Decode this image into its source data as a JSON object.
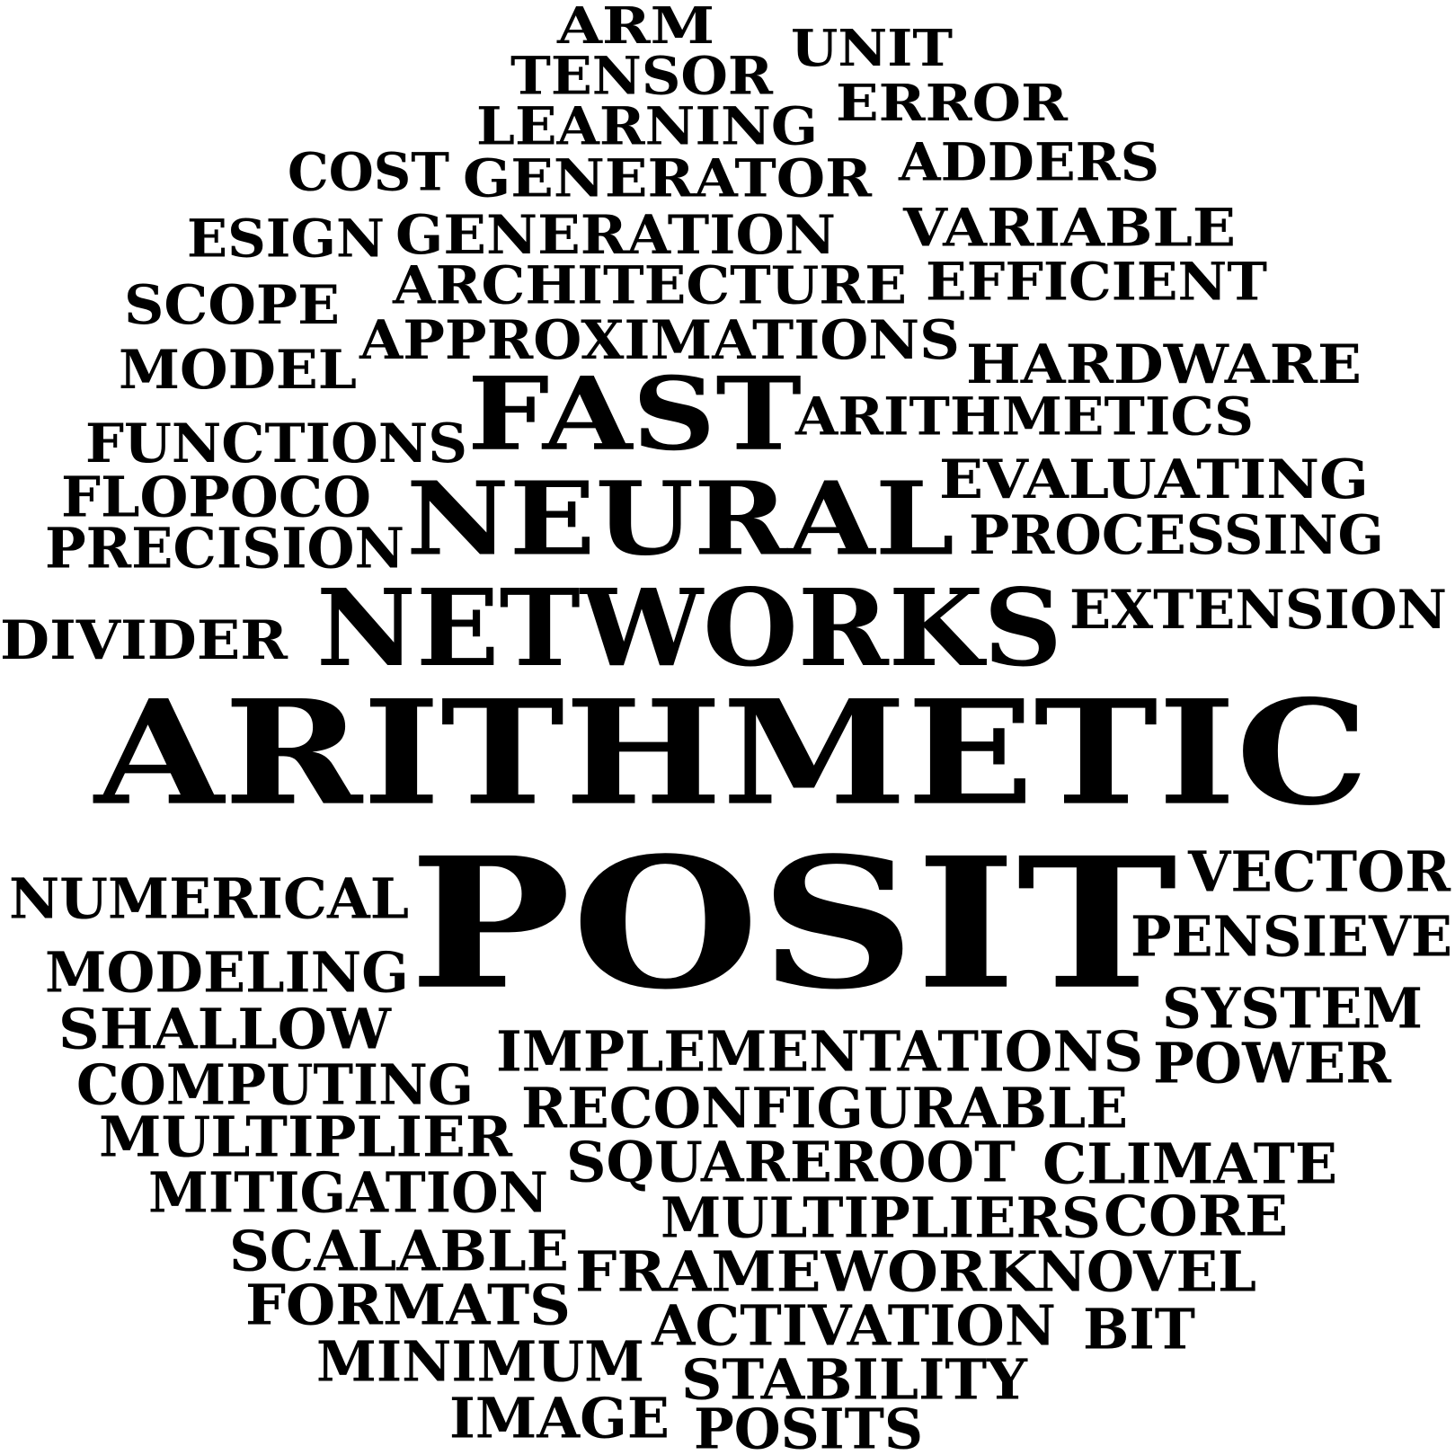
{
  "text_color": "#000000",
  "background_color": "#ffffff",
  "words": [
    "ARM",
    "UNIT",
    "TENSOR",
    "ERROR",
    "LEARNING",
    "COST",
    "GENERATOR",
    "ADDERS",
    "ESIGN",
    "GENERATION",
    "VARIABLE",
    "SCOPE",
    "ARCHITECTURE",
    "EFFICIENT",
    "APPROXIMATIONS",
    "MODEL",
    "HARDWARE",
    "FAST",
    "ARITHMETICS",
    "FUNCTIONS",
    "EVALUATING",
    "FLOPOCO",
    "NEURAL",
    "PRECISION",
    "PROCESSING",
    "NETWORKS",
    "EXTENSION",
    "DIVIDER",
    "ARITHMETIC",
    "POSIT",
    "VECTOR",
    "NUMERICAL",
    "PENSIEVE",
    "MODELING",
    "SYSTEM",
    "SHALLOW",
    "IMPLEMENTATIONS",
    "POWER",
    "COMPUTING",
    "RECONFIGURABLE",
    "MULTIPLIER",
    "SQUAREROOT",
    "CLIMATE",
    "MITIGATION",
    "MULTIPLIERS",
    "CORE",
    "SCALABLE",
    "FRAMEWORK",
    "NOVEL",
    "FORMATS",
    "ACTIVATION",
    "BIT",
    "MINIMUM",
    "STABILITY",
    "IMAGE",
    "POSITS"
  ]
}
